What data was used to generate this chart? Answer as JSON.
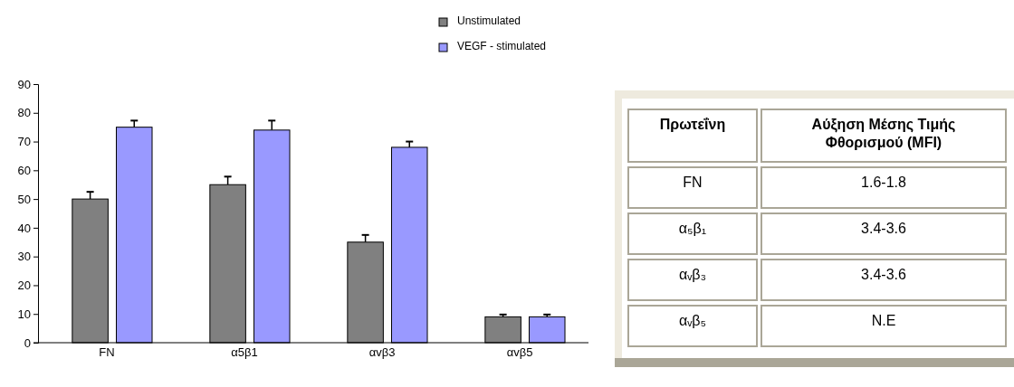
{
  "chart_data": [
    {
      "type": "bar",
      "categories": [
        "FN",
        "α5β1",
        "αvβ3",
        "αvβ5"
      ],
      "series": [
        {
          "name": "Unstimulated",
          "color": "#808080",
          "values": [
            50,
            55,
            35,
            9
          ],
          "errors": [
            [
              50,
              52.5
            ],
            [
              55,
              57.8
            ],
            [
              35,
              37.5
            ],
            [
              9,
              9.8
            ]
          ]
        },
        {
          "name": "VEGF - stimulated",
          "color": "#9999ff",
          "values": [
            75,
            74,
            68,
            9
          ],
          "errors": [
            [
              75,
              77.3
            ],
            [
              74,
              77.3
            ],
            [
              68,
              70
            ],
            [
              9,
              9.8
            ]
          ]
        }
      ],
      "ylim": [
        0,
        90
      ],
      "yticks": [
        0,
        10,
        20,
        30,
        40,
        50,
        60,
        70,
        80,
        90
      ],
      "grid": false,
      "legend": "top"
    },
    {
      "type": "other",
      "annotations": [
        "Πρωτεΐνη",
        "Αύξηση Μέσης Τιμής Φθορισμού (MFI)",
        "FN",
        "1.6-1.8",
        "α₅β₁",
        "3.4-3.6",
        "αᵥβ₃",
        "3.4-3.6",
        "αᵥβ₅",
        "N.E"
      ]
    }
  ]
}
